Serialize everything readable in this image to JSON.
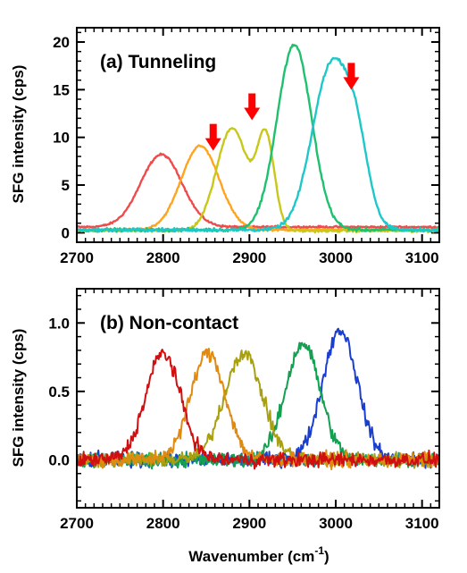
{
  "chart_data": [
    {
      "type": "line",
      "title": "(a) Tunneling",
      "xlabel": "Wavenumber (cm-1)",
      "ylabel": "SFG intensity (cps)",
      "xlim": [
        2700,
        3120
      ],
      "ylim": [
        -1,
        21.5
      ],
      "x_ticks": [
        2700,
        2800,
        2900,
        3000,
        3100
      ],
      "y_ticks": [
        0,
        5,
        10,
        15,
        20
      ],
      "x_tick_labels": [
        "2700",
        "2800",
        "2900",
        "3000",
        "3100"
      ],
      "y_tick_labels": [
        "0",
        "5",
        "10",
        "15",
        "20"
      ],
      "grid": false,
      "series": [
        {
          "color": "#f04b4b",
          "peaks": [
            {
              "center": 2798,
              "amp": 7.6,
              "width": 24
            }
          ],
          "baseline": 0.6,
          "noise": 0.15
        },
        {
          "color": "#ffa41f",
          "peaks": [
            {
              "center": 2843,
              "amp": 8.8,
              "width": 22
            }
          ],
          "baseline": 0.3,
          "noise": 0.15
        },
        {
          "color": "#c8c81a",
          "peaks": [
            {
              "center": 2880,
              "amp": 10.8,
              "width": 18
            },
            {
              "center": 2919,
              "amp": 9.6,
              "width": 10
            }
          ],
          "baseline": 0.2,
          "noise": 0.2
        },
        {
          "color": "#1fc06e",
          "peaks": [
            {
              "center": 2952,
              "amp": 19.4,
              "width": 20
            }
          ],
          "baseline": 0.3,
          "noise": 0.25
        },
        {
          "color": "#1fc8c8",
          "peaks": [
            {
              "center": 2995,
              "amp": 17.2,
              "width": 22
            },
            {
              "center": 3025,
              "amp": 6.0,
              "width": 14
            }
          ],
          "baseline": 0.3,
          "noise": 0.25
        }
      ],
      "annotations": [
        {
          "type": "arrow",
          "x": 2858,
          "y": 8.6,
          "color": "#ff0000"
        },
        {
          "type": "arrow",
          "x": 2903,
          "y": 11.8,
          "color": "#ff0000"
        },
        {
          "type": "arrow",
          "x": 3018,
          "y": 15.0,
          "color": "#ff0000"
        }
      ]
    },
    {
      "type": "line",
      "title": "(b) Non-contact",
      "xlabel": "Wavenumber (cm-1)",
      "ylabel": "SFG intensity (cps)",
      "xlim": [
        2700,
        3120
      ],
      "ylim": [
        -0.35,
        1.25
      ],
      "x_ticks": [
        2700,
        2800,
        2900,
        3000,
        3100
      ],
      "y_ticks": [
        0.0,
        0.5,
        1.0
      ],
      "x_tick_labels": [
        "2700",
        "2800",
        "2900",
        "3000",
        "3100"
      ],
      "y_tick_labels": [
        "0.0",
        "0.5",
        "1.0"
      ],
      "grid": false,
      "series": [
        {
          "color": "#1a8a8a",
          "peaks": [],
          "baseline": 0.0,
          "noise": 0.07
        },
        {
          "color": "#1a3fd0",
          "peaks": [
            {
              "center": 3005,
              "amp": 0.95,
              "width": 20
            }
          ],
          "baseline": 0.0,
          "noise": 0.08
        },
        {
          "color": "#13a050",
          "peaks": [
            {
              "center": 2962,
              "amp": 0.85,
              "width": 20
            }
          ],
          "baseline": 0.0,
          "noise": 0.08
        },
        {
          "color": "#a8a010",
          "peaks": [
            {
              "center": 2893,
              "amp": 0.78,
              "width": 22
            }
          ],
          "baseline": 0.0,
          "noise": 0.08
        },
        {
          "color": "#e08a10",
          "peaks": [
            {
              "center": 2852,
              "amp": 0.78,
              "width": 20
            }
          ],
          "baseline": 0.0,
          "noise": 0.08
        },
        {
          "color": "#d01010",
          "peaks": [
            {
              "center": 2800,
              "amp": 0.78,
              "width": 20
            }
          ],
          "baseline": 0.0,
          "noise": 0.08
        }
      ]
    }
  ],
  "shared_xlabel_text": "Wavenumber (cm",
  "shared_xlabel_sup": "-1",
  "shared_xlabel_end": ")"
}
